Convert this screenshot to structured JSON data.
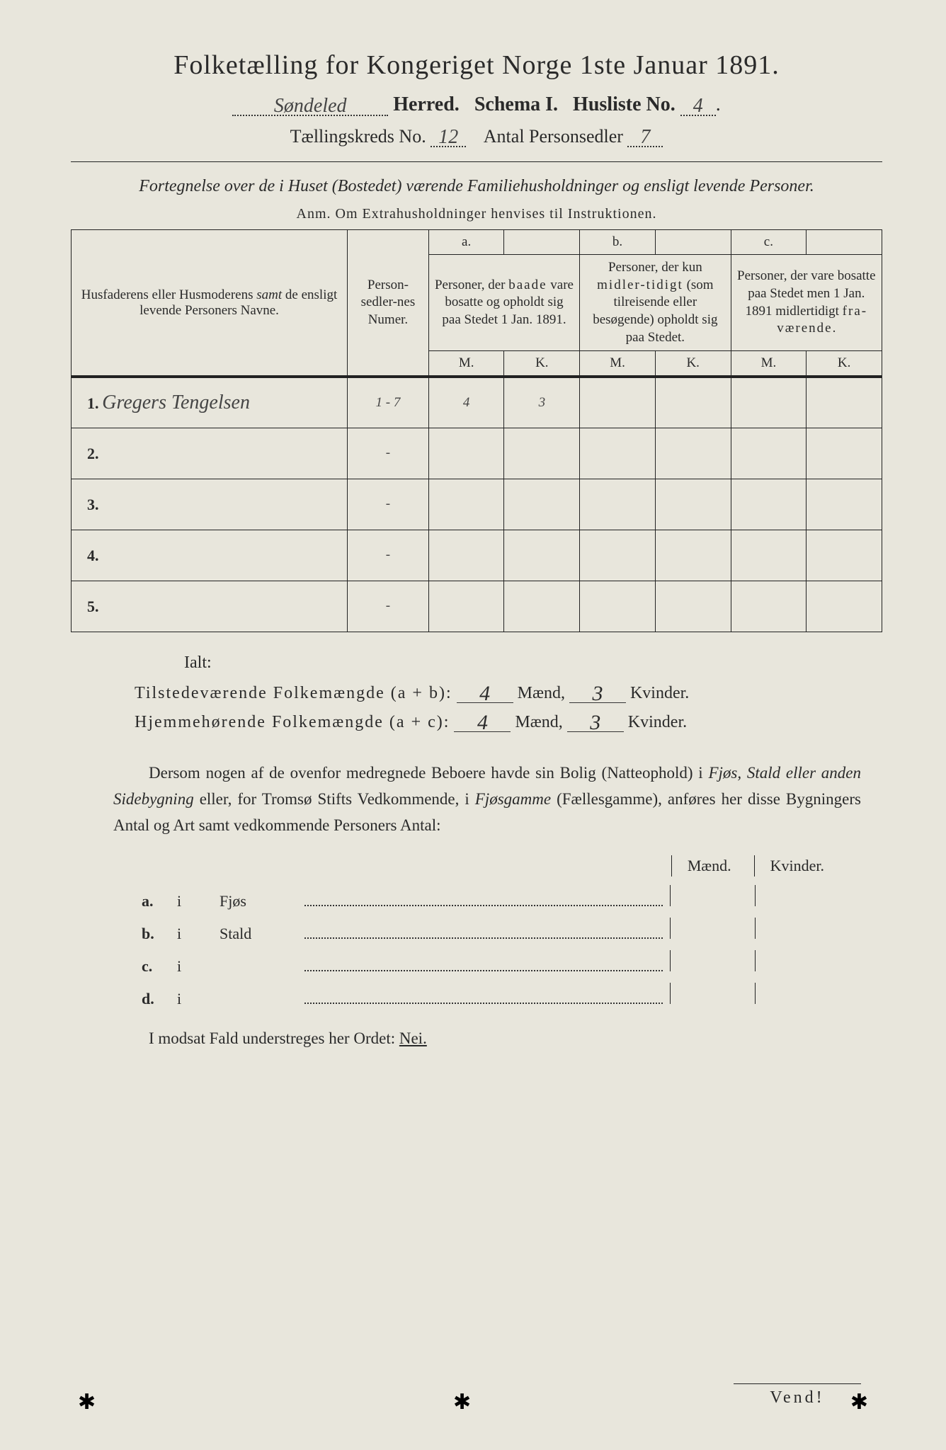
{
  "header": {
    "title": "Folketælling for Kongeriget Norge 1ste Januar 1891.",
    "herred_value": "Søndeled",
    "herred_label": "Herred.",
    "schema_label": "Schema I.",
    "husliste_label": "Husliste No.",
    "husliste_value": "4",
    "kreds_label": "Tællingskreds No.",
    "kreds_value": "12",
    "antal_label": "Antal Personsedler",
    "antal_value": "7"
  },
  "subtitle": "Fortegnelse over de i Huset (Bostedet) værende Familiehusholdninger og ensligt levende Personer.",
  "anm": "Anm.  Om Extrahusholdninger henvises til Instruktionen.",
  "table": {
    "col_name": "Husfaderens eller Husmoderens samt de ensligt levende Personers Navne.",
    "col_num": "Person-sedler-nes Numer.",
    "col_a_top": "a.",
    "col_a": "Personer, der baade vare bosatte og opholdt sig paa Stedet 1 Jan. 1891.",
    "col_b_top": "b.",
    "col_b": "Personer, der kun midlertidigt (som tilreisende eller besøgende) opholdt sig paa Stedet.",
    "col_c_top": "c.",
    "col_c": "Personer, der vare bosatte paa Stedet men 1 Jan. 1891 midlertidigt fraværende.",
    "m": "M.",
    "k": "K.",
    "rows": [
      {
        "n": "1.",
        "name": "Gregers Tengelsen",
        "num": "1 - 7",
        "am": "4",
        "ak": "3",
        "bm": "",
        "bk": "",
        "cm": "",
        "ck": ""
      },
      {
        "n": "2.",
        "name": "",
        "num": "-",
        "am": "",
        "ak": "",
        "bm": "",
        "bk": "",
        "cm": "",
        "ck": ""
      },
      {
        "n": "3.",
        "name": "",
        "num": "-",
        "am": "",
        "ak": "",
        "bm": "",
        "bk": "",
        "cm": "",
        "ck": ""
      },
      {
        "n": "4.",
        "name": "",
        "num": "-",
        "am": "",
        "ak": "",
        "bm": "",
        "bk": "",
        "cm": "",
        "ck": ""
      },
      {
        "n": "5.",
        "name": "",
        "num": "-",
        "am": "",
        "ak": "",
        "bm": "",
        "bk": "",
        "cm": "",
        "ck": ""
      }
    ]
  },
  "totals": {
    "ialt": "Ialt:",
    "line1_label": "Tilstedeværende Folkemængde (a + b):",
    "line2_label": "Hjemmehørende Folkemængde (a + c):",
    "maend": "Mænd,",
    "kvinder": "Kvinder.",
    "ab_m": "4",
    "ab_k": "3",
    "ac_m": "4",
    "ac_k": "3"
  },
  "para": "Dersom nogen af de ovenfor medregnede Beboere havde sin Bolig (Natteophold) i Fjøs, Stald eller anden Sidebygning eller, for Tromsø Stifts Vedkommende, i Fjøsgamme (Fællesgamme), anføres her disse Bygningers Antal og Art samt vedkommende Personers Antal:",
  "sidebuild": {
    "maend": "Mænd.",
    "kvinder": "Kvinder.",
    "rows": [
      {
        "label": "a.",
        "i": "i",
        "type": "Fjøs"
      },
      {
        "label": "b.",
        "i": "i",
        "type": "Stald"
      },
      {
        "label": "c.",
        "i": "i",
        "type": ""
      },
      {
        "label": "d.",
        "i": "i",
        "type": ""
      }
    ]
  },
  "modsat": "I modsat Fald understreges her Ordet: ",
  "nej": "Nei.",
  "vend": "Vend!",
  "style": {
    "background": "#e8e6dc",
    "text_color": "#2a2a2a",
    "handwriting_color": "#444",
    "border_color": "#222"
  }
}
